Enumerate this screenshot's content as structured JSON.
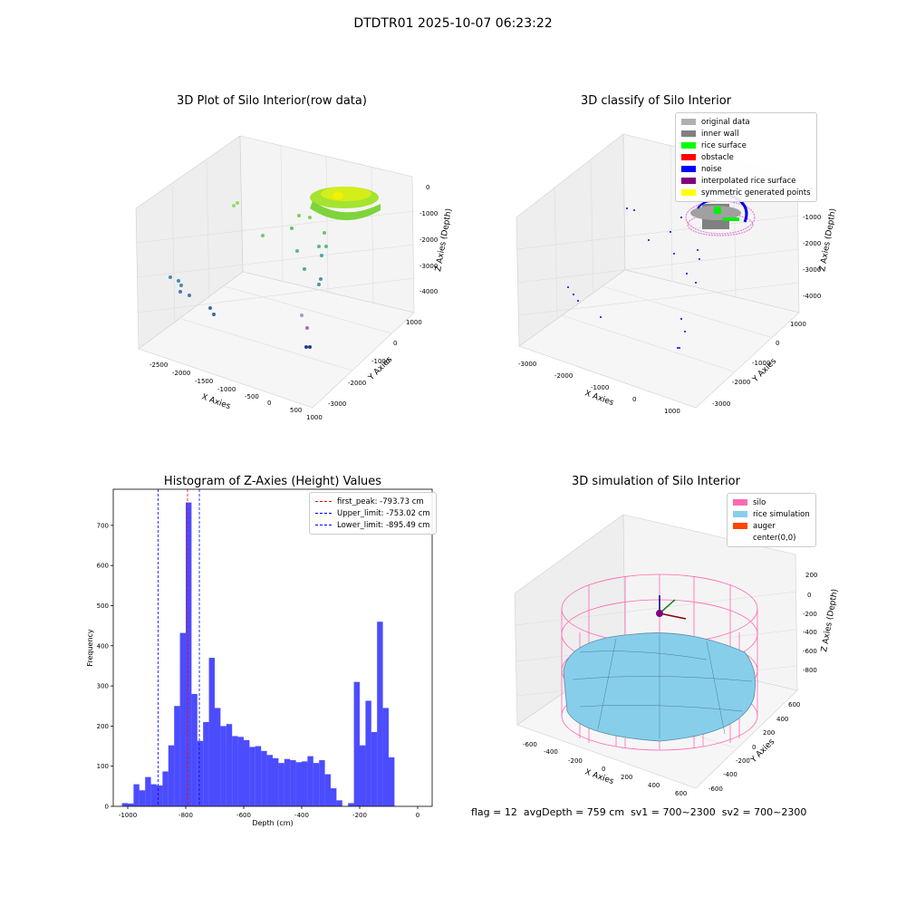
{
  "suptitle": "DTDTR01 2025-10-07 06:23:22",
  "panels": {
    "p1": {
      "title": "3D Plot of Silo Interior(row data)",
      "xlabel": "X Axies",
      "ylabel": "Y Axies",
      "zlabel": "Z Axies (Depth)",
      "xticks": [
        "-2500",
        "-2000",
        "-1500",
        "-1000",
        "-500",
        "0",
        "500",
        "1000"
      ],
      "yticks": [
        "1000",
        "0",
        "-1000",
        "-2000",
        "-3000"
      ],
      "zticks": [
        "0",
        "-1000",
        "-2000",
        "-3000",
        "-4000"
      ]
    },
    "p2": {
      "title": "3D classify of Silo Interior",
      "xlabel": "X Axies",
      "ylabel": "Y Axies",
      "zlabel": "Z Axies (Depth)",
      "xticks": [
        "-3000",
        "-2000",
        "-1000",
        "0",
        "1000"
      ],
      "yticks": [
        "1000",
        "0",
        "-1000",
        "-2000",
        "-3000"
      ],
      "zticks": [
        "0",
        "-1000",
        "-2000",
        "-3000",
        "-4000"
      ],
      "legend": [
        {
          "label": "original data",
          "color": "#b0b0b0"
        },
        {
          "label": "inner wall",
          "color": "#808080"
        },
        {
          "label": "rice surface",
          "color": "#00ff00"
        },
        {
          "label": "obstacle",
          "color": "#ff0000"
        },
        {
          "label": "noise",
          "color": "#0000ff"
        },
        {
          "label": "interpolated rice surface",
          "color": "#800080"
        },
        {
          "label": "symmetric generated points",
          "color": "#ffff00"
        }
      ]
    },
    "p4": {
      "title": "3D simulation of Silo Interior",
      "xlabel": "X Axies",
      "ylabel": "Y Axies",
      "zlabel": "Z Axies (Depth)",
      "xticks": [
        "-600",
        "-400",
        "-200",
        "0",
        "200",
        "400",
        "600"
      ],
      "yticks": [
        "600",
        "400",
        "200",
        "0",
        "-200",
        "-400",
        "-600"
      ],
      "zticks": [
        "200",
        "0",
        "-200",
        "-400",
        "-600",
        "-800"
      ],
      "legend": [
        {
          "label": "silo",
          "color": "#ff69b4"
        },
        {
          "label": "rice simulation",
          "color": "#87ceeb"
        },
        {
          "label": "auger",
          "color": "#ff4500"
        },
        {
          "label": "center(0,0)",
          "color": ""
        }
      ]
    }
  },
  "chart_data": [
    {
      "type": "bar",
      "title": "Histogram of Z-Axies (Height) Values",
      "xlabel": "Depth (cm)",
      "ylabel": "Frequency",
      "xlim": [
        -1050,
        50
      ],
      "ylim": [
        0,
        790
      ],
      "xticks": [
        -1000,
        -800,
        -600,
        -400,
        -200,
        0
      ],
      "yticks": [
        0,
        100,
        200,
        300,
        400,
        500,
        600,
        700
      ],
      "bin_width": 20,
      "bins": [
        {
          "x0": -1020,
          "v": 8
        },
        {
          "x0": -1000,
          "v": 7
        },
        {
          "x0": -980,
          "v": 55
        },
        {
          "x0": -960,
          "v": 40
        },
        {
          "x0": -940,
          "v": 73
        },
        {
          "x0": -920,
          "v": 55
        },
        {
          "x0": -900,
          "v": 52
        },
        {
          "x0": -880,
          "v": 87
        },
        {
          "x0": -860,
          "v": 152
        },
        {
          "x0": -840,
          "v": 250
        },
        {
          "x0": -820,
          "v": 432
        },
        {
          "x0": -800,
          "v": 757
        },
        {
          "x0": -780,
          "v": 280
        },
        {
          "x0": -760,
          "v": 163
        },
        {
          "x0": -740,
          "v": 210
        },
        {
          "x0": -720,
          "v": 370
        },
        {
          "x0": -700,
          "v": 245
        },
        {
          "x0": -680,
          "v": 200
        },
        {
          "x0": -660,
          "v": 205
        },
        {
          "x0": -640,
          "v": 175
        },
        {
          "x0": -620,
          "v": 173
        },
        {
          "x0": -600,
          "v": 165
        },
        {
          "x0": -580,
          "v": 148
        },
        {
          "x0": -560,
          "v": 150
        },
        {
          "x0": -540,
          "v": 138
        },
        {
          "x0": -520,
          "v": 128
        },
        {
          "x0": -500,
          "v": 120
        },
        {
          "x0": -480,
          "v": 108
        },
        {
          "x0": -460,
          "v": 118
        },
        {
          "x0": -440,
          "v": 115
        },
        {
          "x0": -420,
          "v": 110
        },
        {
          "x0": -400,
          "v": 112
        },
        {
          "x0": -380,
          "v": 125
        },
        {
          "x0": -360,
          "v": 108
        },
        {
          "x0": -340,
          "v": 115
        },
        {
          "x0": -320,
          "v": 80
        },
        {
          "x0": -300,
          "v": 45
        },
        {
          "x0": -280,
          "v": 15
        },
        {
          "x0": -260,
          "v": 0
        },
        {
          "x0": -240,
          "v": 8
        },
        {
          "x0": -220,
          "v": 310
        },
        {
          "x0": -200,
          "v": 152
        },
        {
          "x0": -180,
          "v": 263
        },
        {
          "x0": -160,
          "v": 185
        },
        {
          "x0": -140,
          "v": 460
        },
        {
          "x0": -120,
          "v": 245
        },
        {
          "x0": -100,
          "v": 122
        }
      ],
      "bar_color": "#0000ff",
      "vlines": [
        {
          "label": "first_peak: -793.73 cm",
          "x": -793.73,
          "color": "#ff0000"
        },
        {
          "label": "Upper_limit: -753.02 cm",
          "x": -753.02,
          "color": "#0000ff"
        },
        {
          "label": "Lower_limit: -895.49 cm",
          "x": -895.49,
          "color": "#0000ff"
        }
      ],
      "legend_position": "upper right"
    }
  ],
  "footer": {
    "flag": "flag = 12",
    "avg": "avgDepth = 759 cm",
    "sv1": "sv1 = 700~2300",
    "sv2": "sv2 = 700~2300"
  }
}
